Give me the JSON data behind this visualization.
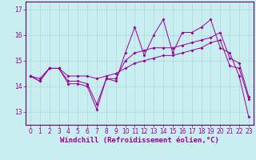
{
  "xlabel": "Windchill (Refroidissement éolien,°C)",
  "background_color": "#c8eef0",
  "line_color": "#990099",
  "xlim": [
    -0.5,
    23.5
  ],
  "ylim": [
    12.5,
    17.3
  ],
  "xticks": [
    0,
    1,
    2,
    3,
    4,
    5,
    6,
    7,
    8,
    9,
    10,
    11,
    12,
    13,
    14,
    15,
    16,
    17,
    18,
    19,
    20,
    21,
    22,
    23
  ],
  "yticks": [
    13,
    14,
    15,
    16,
    17
  ],
  "curve1_x": [
    0,
    1,
    2,
    3,
    4,
    5,
    6,
    7,
    8,
    9,
    10,
    11,
    12,
    13,
    14,
    15,
    16,
    17,
    18,
    19,
    20,
    21,
    22,
    23
  ],
  "curve1_y": [
    14.4,
    14.2,
    14.7,
    14.7,
    14.1,
    14.1,
    14.0,
    13.1,
    14.3,
    14.2,
    15.3,
    16.3,
    15.2,
    16.0,
    16.6,
    15.3,
    16.1,
    16.1,
    16.3,
    16.6,
    15.5,
    15.3,
    14.4,
    12.8
  ],
  "curve2_x": [
    0,
    1,
    2,
    3,
    4,
    5,
    6,
    7,
    8,
    9,
    10,
    11,
    12,
    13,
    14,
    15,
    16,
    17,
    18,
    19,
    20,
    21,
    22,
    23
  ],
  "curve2_y": [
    14.4,
    14.2,
    14.7,
    14.7,
    14.2,
    14.2,
    14.1,
    13.3,
    14.3,
    14.3,
    15.0,
    15.3,
    15.4,
    15.5,
    15.5,
    15.5,
    15.6,
    15.7,
    15.8,
    15.9,
    16.1,
    15.1,
    14.9,
    13.6
  ],
  "curve3_x": [
    0,
    1,
    2,
    3,
    4,
    5,
    6,
    7,
    8,
    9,
    10,
    11,
    12,
    13,
    14,
    15,
    16,
    17,
    18,
    19,
    20,
    21,
    22,
    23
  ],
  "curve3_y": [
    14.4,
    14.3,
    14.7,
    14.7,
    14.4,
    14.4,
    14.4,
    14.3,
    14.4,
    14.5,
    14.7,
    14.9,
    15.0,
    15.1,
    15.2,
    15.2,
    15.3,
    15.4,
    15.5,
    15.7,
    15.8,
    14.8,
    14.7,
    13.5
  ],
  "grid_color": "#b0d8dc",
  "axis_color": "#660066",
  "tick_label_color": "#990099",
  "font_size_label": 6.5,
  "font_size_tick": 5.5,
  "marker_size": 2.0,
  "line_width": 0.7
}
